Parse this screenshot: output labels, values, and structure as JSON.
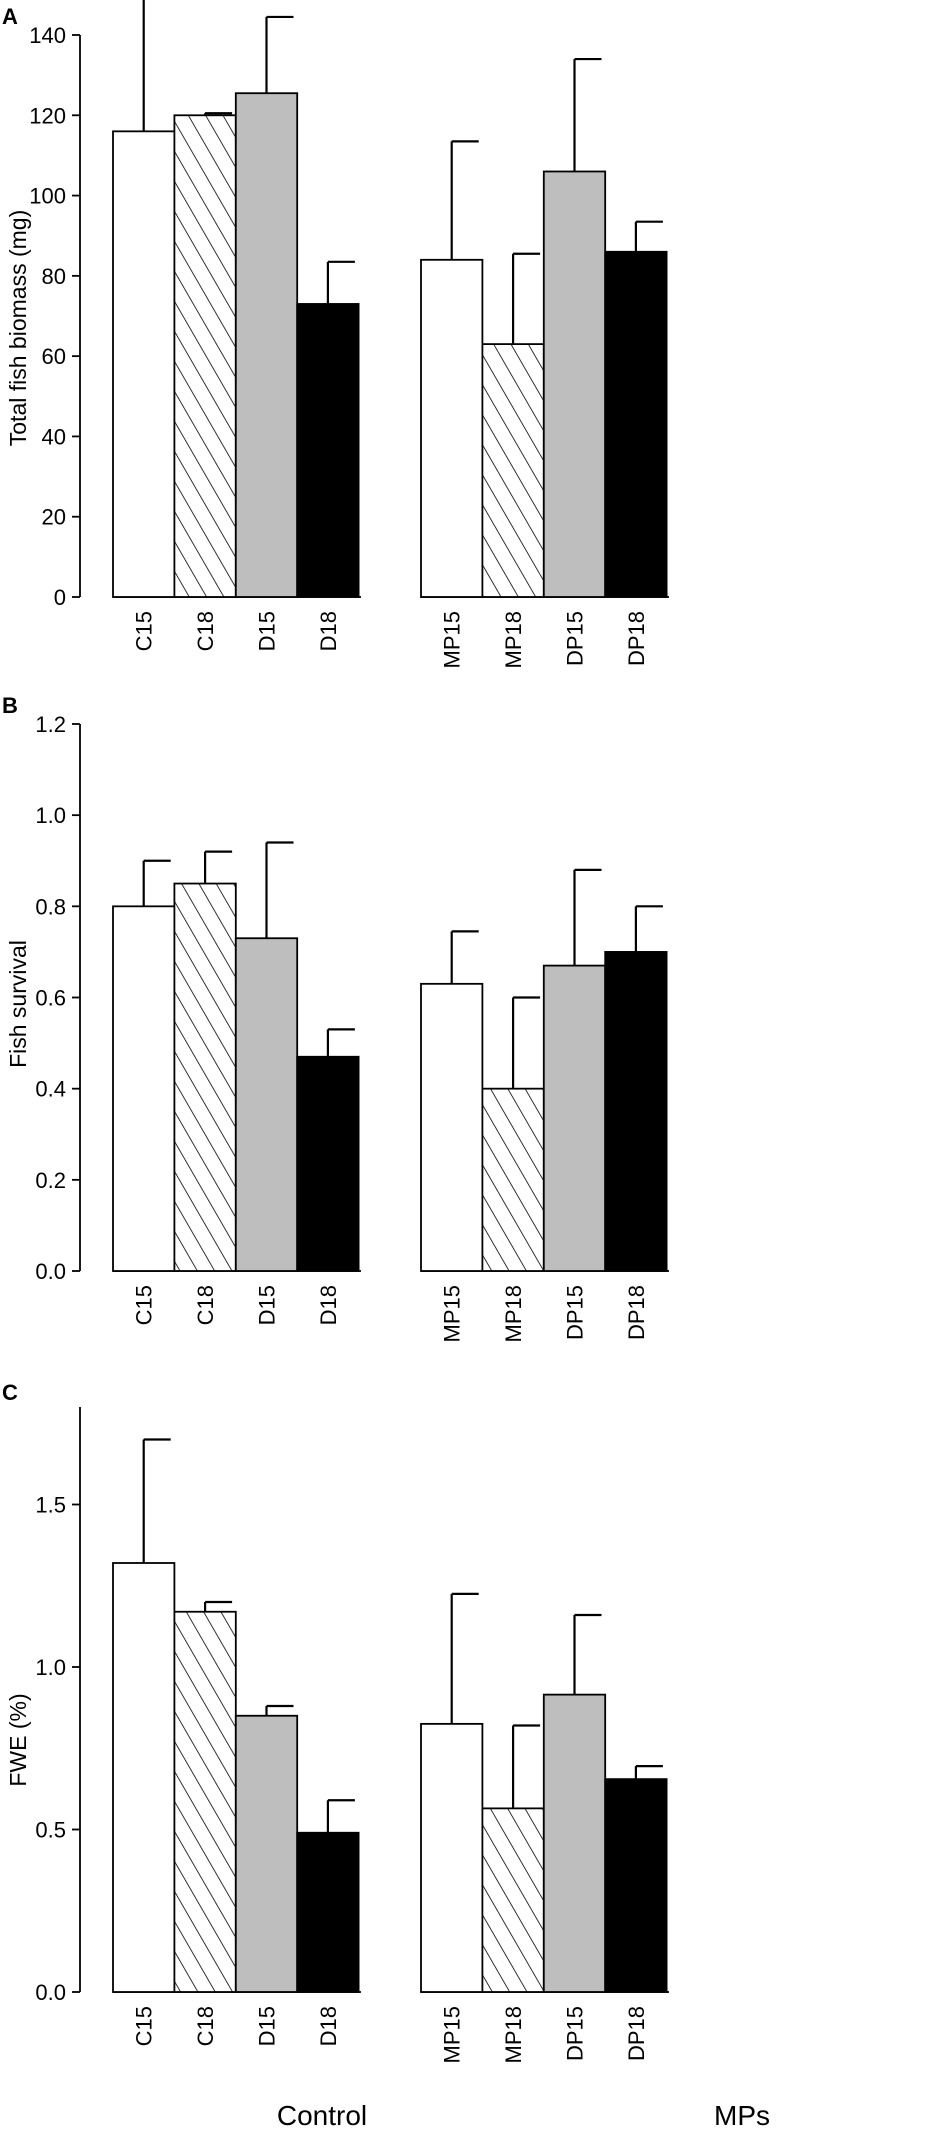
{
  "chart_data": [
    {
      "type": "bar",
      "panel": "A",
      "ylabel": "Total fish biomass (mg)",
      "ylim": [
        0,
        140
      ],
      "yticks": [
        "0",
        "20",
        "40",
        "60",
        "80",
        "100",
        "120",
        "140"
      ],
      "categories": [
        "C15",
        "C18",
        "D15",
        "D18",
        "MP15",
        "MP18",
        "DP15",
        "DP18"
      ],
      "values": [
        116,
        120,
        125.5,
        73,
        84,
        63,
        106,
        86
      ],
      "errors": [
        33.5,
        0.5,
        19,
        10.5,
        29.5,
        22.5,
        28,
        7.5
      ],
      "fills": [
        "white",
        "hatch",
        "gray",
        "black",
        "white",
        "hatch",
        "gray",
        "black"
      ]
    },
    {
      "type": "bar",
      "panel": "B",
      "ylabel": "Fish survival",
      "ylim": [
        0,
        1.2
      ],
      "yticks": [
        "0.0",
        "0.2",
        "0.4",
        "0.6",
        "0.8",
        "1.0",
        "1.2"
      ],
      "categories": [
        "C15",
        "C18",
        "D15",
        "D18",
        "MP15",
        "MP18",
        "DP15",
        "DP18"
      ],
      "values": [
        0.8,
        0.85,
        0.73,
        0.47,
        0.63,
        0.4,
        0.67,
        0.7
      ],
      "errors": [
        0.1,
        0.07,
        0.21,
        0.06,
        0.115,
        0.2,
        0.21,
        0.1
      ],
      "fills": [
        "white",
        "hatch",
        "gray",
        "black",
        "white",
        "hatch",
        "gray",
        "black"
      ]
    },
    {
      "type": "bar",
      "panel": "C",
      "ylabel": "FWE (%)",
      "ylim": [
        0,
        1.8
      ],
      "yticks": [
        "0.0",
        "0.5",
        "1.0",
        "1.5"
      ],
      "ytick_values": [
        0,
        0.5,
        1.0,
        1.5
      ],
      "categories": [
        "C15",
        "C18",
        "D15",
        "D18",
        "MP15",
        "MP18",
        "DP15",
        "DP18"
      ],
      "values": [
        1.32,
        1.17,
        0.85,
        0.49,
        0.825,
        0.565,
        0.915,
        0.655
      ],
      "errors": [
        0.38,
        0.03,
        0.03,
        0.1,
        0.4,
        0.255,
        0.245,
        0.04
      ],
      "fills": [
        "white",
        "hatch",
        "gray",
        "black",
        "white",
        "hatch",
        "gray",
        "black"
      ]
    }
  ],
  "group_labels": [
    "Control",
    "MPs"
  ],
  "colors": {
    "gray": "#bebebe",
    "black": "#000000",
    "white": "#ffffff"
  }
}
